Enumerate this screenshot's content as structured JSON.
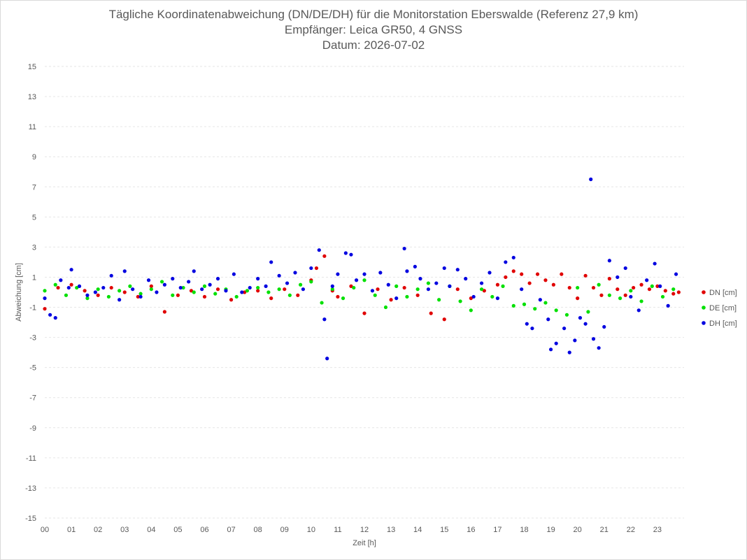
{
  "chart_data": {
    "type": "scatter",
    "title": "Tägliche Koordinatenabweichung (DN/DE/DH) für die Monitorstation Eberswalde (Referenz 27,9 km)",
    "subtitle_lines": [
      "Empfänger: Leica GR50, 4 GNSS",
      "Datum: 2026-07-02"
    ],
    "xlabel": "Zeit [h]",
    "ylabel": "Abweichung [cm]",
    "xlim": [
      0,
      24
    ],
    "ylim": [
      -15,
      15
    ],
    "y_ticks": [
      "15",
      "13",
      "11",
      "9",
      "7",
      "5",
      "3",
      "1",
      "-1",
      "-3",
      "-5",
      "-7",
      "-9",
      "-11",
      "-13",
      "-15"
    ],
    "x_ticks": [
      "00",
      "01",
      "02",
      "03",
      "04",
      "05",
      "06",
      "07",
      "08",
      "09",
      "10",
      "11",
      "12",
      "13",
      "14",
      "15",
      "16",
      "17",
      "18",
      "19",
      "20",
      "21",
      "22",
      "23"
    ],
    "grid": "horizontal",
    "legend_position": "right",
    "series": [
      {
        "name": "DN [cm]",
        "color": "#e00000",
        "x": [
          0.0,
          0.5,
          1.0,
          1.5,
          2.0,
          2.5,
          3.0,
          3.5,
          4.0,
          4.5,
          5.0,
          5.5,
          6.0,
          6.5,
          7.0,
          7.5,
          8.0,
          8.5,
          9.0,
          9.5,
          10.0,
          10.2,
          10.5,
          10.8,
          11.0,
          11.5,
          12.0,
          12.5,
          13.0,
          13.5,
          14.0,
          14.5,
          15.0,
          15.5,
          16.0,
          16.5,
          17.0,
          17.3,
          17.6,
          17.9,
          18.2,
          18.5,
          18.8,
          19.1,
          19.4,
          19.7,
          20.0,
          20.3,
          20.6,
          20.9,
          21.2,
          21.5,
          21.8,
          22.1,
          22.4,
          22.7,
          23.0,
          23.3,
          23.6,
          23.8
        ],
        "y": [
          -1.1,
          0.3,
          0.5,
          0.1,
          -0.2,
          0.3,
          0.0,
          -0.3,
          0.4,
          -1.3,
          -0.2,
          0.1,
          -0.3,
          0.2,
          -0.5,
          0.0,
          0.1,
          -0.4,
          0.2,
          -0.2,
          0.8,
          1.6,
          2.4,
          0.1,
          -0.3,
          0.4,
          -1.4,
          0.2,
          -0.5,
          0.3,
          -0.2,
          -1.4,
          -1.8,
          0.2,
          -0.4,
          0.1,
          0.5,
          1.0,
          1.4,
          1.2,
          0.6,
          1.2,
          0.8,
          0.5,
          1.2,
          0.3,
          -0.4,
          1.1,
          0.3,
          -0.2,
          0.9,
          0.2,
          -0.2,
          0.3,
          0.5,
          0.2,
          0.4,
          0.1,
          -0.1,
          0.0
        ]
      },
      {
        "name": "DE [cm]",
        "color": "#00e000",
        "x": [
          0.0,
          0.4,
          0.8,
          1.2,
          1.6,
          2.0,
          2.4,
          2.8,
          3.2,
          3.6,
          4.0,
          4.4,
          4.8,
          5.2,
          5.6,
          6.0,
          6.4,
          6.8,
          7.2,
          7.6,
          8.0,
          8.4,
          8.8,
          9.2,
          9.6,
          10.0,
          10.4,
          10.8,
          11.2,
          11.6,
          12.0,
          12.4,
          12.8,
          13.2,
          13.6,
          14.0,
          14.4,
          14.8,
          15.2,
          15.6,
          16.0,
          16.4,
          16.8,
          17.2,
          17.6,
          18.0,
          18.4,
          18.8,
          19.2,
          19.6,
          20.0,
          20.4,
          20.8,
          21.2,
          21.6,
          22.0,
          22.4,
          22.8,
          23.2,
          23.6
        ],
        "y": [
          0.1,
          0.5,
          -0.2,
          0.3,
          -0.4,
          0.2,
          -0.3,
          0.1,
          0.4,
          -0.1,
          0.2,
          0.7,
          -0.2,
          0.3,
          0.0,
          0.4,
          -0.1,
          0.2,
          -0.3,
          0.1,
          0.3,
          0.0,
          0.2,
          -0.2,
          0.5,
          0.7,
          -0.7,
          0.2,
          -0.4,
          0.3,
          0.8,
          -0.2,
          -1.0,
          0.4,
          -0.3,
          0.2,
          0.6,
          -0.5,
          0.4,
          -0.6,
          -1.2,
          0.2,
          -0.3,
          0.4,
          -0.9,
          -0.8,
          -1.1,
          -0.7,
          -1.2,
          -1.5,
          0.3,
          -1.3,
          0.5,
          -0.2,
          -0.4,
          0.1,
          -0.6,
          0.4,
          -0.3,
          0.2
        ]
      },
      {
        "name": "DH [cm]",
        "color": "#0000e0",
        "x": [
          0.0,
          0.2,
          0.4,
          0.6,
          0.9,
          1.0,
          1.3,
          1.6,
          1.9,
          2.2,
          2.5,
          2.8,
          3.0,
          3.3,
          3.6,
          3.9,
          4.2,
          4.5,
          4.8,
          5.1,
          5.4,
          5.6,
          5.9,
          6.2,
          6.5,
          6.8,
          7.1,
          7.4,
          7.7,
          8.0,
          8.3,
          8.5,
          8.8,
          9.1,
          9.4,
          9.7,
          10.0,
          10.3,
          10.5,
          10.6,
          10.8,
          11.0,
          11.3,
          11.5,
          11.7,
          12.0,
          12.3,
          12.6,
          12.9,
          13.2,
          13.5,
          13.6,
          13.9,
          14.1,
          14.4,
          14.7,
          15.0,
          15.2,
          15.5,
          15.8,
          16.1,
          16.4,
          16.7,
          17.0,
          17.3,
          17.6,
          17.9,
          18.1,
          18.3,
          18.6,
          18.9,
          19.0,
          19.2,
          19.5,
          19.7,
          19.9,
          20.1,
          20.3,
          20.5,
          20.6,
          20.8,
          21.0,
          21.2,
          21.5,
          21.8,
          22.0,
          22.3,
          22.6,
          22.9,
          23.1,
          23.4,
          23.7
        ],
        "y": [
          -0.4,
          -1.5,
          -1.7,
          0.8,
          0.3,
          1.5,
          0.4,
          -0.2,
          0.0,
          0.3,
          1.1,
          -0.5,
          1.4,
          0.2,
          -0.3,
          0.8,
          0.0,
          0.5,
          0.9,
          0.3,
          0.7,
          1.4,
          0.2,
          0.5,
          0.9,
          0.1,
          1.2,
          0.0,
          0.3,
          0.9,
          0.4,
          2.0,
          1.1,
          0.6,
          1.3,
          0.2,
          1.6,
          2.8,
          -1.8,
          -4.4,
          0.4,
          1.2,
          2.6,
          2.5,
          0.8,
          1.2,
          0.1,
          1.3,
          0.5,
          -0.4,
          2.9,
          1.4,
          1.7,
          0.9,
          0.2,
          0.6,
          1.6,
          0.4,
          1.5,
          0.9,
          -0.3,
          0.6,
          1.3,
          -0.4,
          2.0,
          2.3,
          0.2,
          -2.1,
          -2.4,
          -0.5,
          -1.8,
          -3.8,
          -3.4,
          -2.4,
          -4.0,
          -3.2,
          -1.7,
          -2.1,
          7.5,
          -3.1,
          -3.7,
          -2.3,
          2.1,
          1.0,
          1.6,
          -0.3,
          -1.2,
          0.8,
          1.9,
          0.4,
          -0.9,
          1.2
        ]
      }
    ]
  }
}
